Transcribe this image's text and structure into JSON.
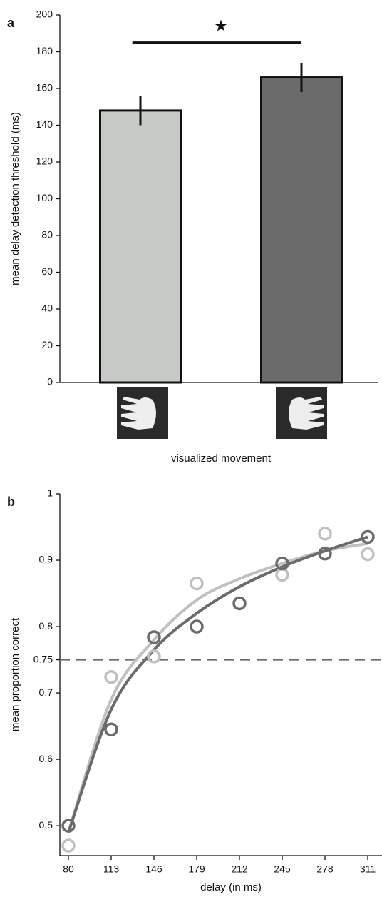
{
  "chart_data": [
    {
      "type": "bar",
      "panel": "a",
      "ylabel": "mean delay detection threshold (ms)",
      "xlabel": "visualized movement",
      "categories": [
        null,
        null
      ],
      "values": [
        148,
        166
      ],
      "errors": [
        8,
        8
      ],
      "colors": [
        "#c8cac8",
        "#6b6b6b"
      ],
      "ylim": [
        0,
        200
      ],
      "yticks": [
        0,
        20,
        40,
        60,
        80,
        100,
        120,
        140,
        160,
        180,
        200
      ],
      "significance": {
        "label": "★",
        "y": 185
      }
    },
    {
      "type": "scatter",
      "panel": "b",
      "ylabel": "mean proportion correct",
      "xlabel": "delay (in ms)",
      "x": [
        80,
        113,
        146,
        179,
        212,
        245,
        278,
        311
      ],
      "series": [
        {
          "color": "#c0c0c0",
          "values": [
            0.47,
            0.724,
            0.755,
            0.865,
            null,
            0.878,
            0.94,
            0.909
          ]
        },
        {
          "color": "#6b6b6b",
          "values": [
            0.5,
            0.645,
            0.784,
            0.8,
            0.835,
            0.895,
            0.91,
            0.935
          ]
        }
      ],
      "fits": [
        {
          "color": "#c0c0c0",
          "values": [
            0.49,
            0.69,
            0.78,
            0.84,
            0.872,
            0.895,
            0.914,
            0.925
          ]
        },
        {
          "color": "#6b6b6b",
          "values": [
            0.49,
            0.675,
            0.765,
            0.82,
            0.86,
            0.89,
            0.914,
            0.935
          ]
        }
      ],
      "hline": 0.75,
      "hline_color": "#6b6b6b",
      "xlim": [
        73.4,
        322
      ],
      "ylim": [
        0.455,
        1
      ],
      "xticks": [
        80,
        113,
        146,
        179,
        212,
        245,
        278,
        311
      ],
      "yticks": [
        0.5,
        0.6,
        0.7,
        0.75,
        0.8,
        0.9,
        1
      ]
    }
  ]
}
